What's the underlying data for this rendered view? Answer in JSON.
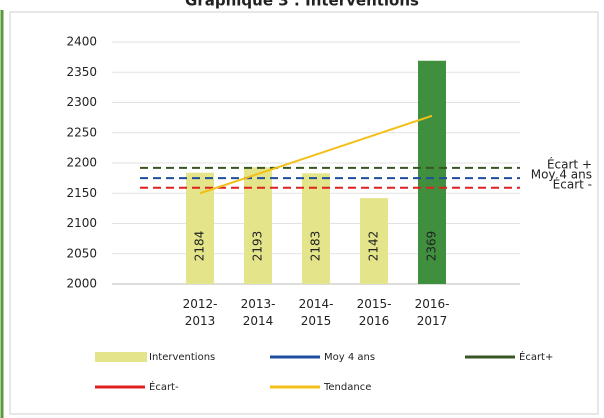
{
  "chart_data": {
    "type": "bar",
    "title": "Graphique 3 : Interventions",
    "categories": [
      [
        "2012-",
        "2013"
      ],
      [
        "2013-",
        "2014"
      ],
      [
        "2014-",
        "2015"
      ],
      [
        "2015-",
        "2016"
      ],
      [
        "2016-",
        "2017"
      ]
    ],
    "ylim": [
      2000,
      2400
    ],
    "yticks": [
      2000,
      2050,
      2100,
      2150,
      2200,
      2250,
      2300,
      2350,
      2400
    ],
    "grid": true,
    "series": [
      {
        "name": "Interventions",
        "type": "bar",
        "color": "#e4e48a",
        "colors": [
          "#e4e48a",
          "#e4e48a",
          "#e4e48a",
          "#e4e48a",
          "#3f8f3f"
        ],
        "values": [
          2184,
          2193,
          2183,
          2142,
          2369
        ]
      },
      {
        "name": "Moy 4 ans",
        "type": "line",
        "color": "#1f4e9c",
        "dash": true,
        "end_label": "Moy 4 ans",
        "values": [
          2175,
          2175,
          2175,
          2175,
          2175
        ]
      },
      {
        "name": "Écart+",
        "type": "line",
        "color": "#375623",
        "dash": true,
        "end_label": "Écart +",
        "values": [
          2192,
          2192,
          2192,
          2192,
          2192
        ]
      },
      {
        "name": "Écart-",
        "type": "line",
        "color": "#e02020",
        "dash": true,
        "end_label": "Écart -",
        "values": [
          2159,
          2159,
          2159,
          2159,
          2159
        ]
      },
      {
        "name": "Tendance",
        "type": "line",
        "color": "#f2c019",
        "dash": false,
        "values": [
          2150,
          2182,
          2214,
          2246,
          2278
        ]
      }
    ],
    "legend": "bottom"
  }
}
